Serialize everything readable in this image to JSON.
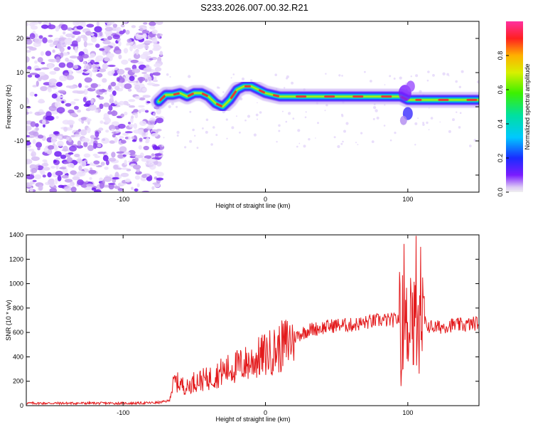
{
  "title": "S233.2026.007.00.32.R21",
  "colors": {
    "spectrum_ridge": "#e53935",
    "snr_line": "#e31a1c",
    "axis": "#000000"
  },
  "chart_data": [
    {
      "type": "heatmap",
      "title": "S233.2026.007.00.32.R21",
      "xlabel": "Height of straight line (km)",
      "ylabel": "Frequency (Hz)",
      "xlim": [
        -168,
        150
      ],
      "ylim": [
        -25,
        25
      ],
      "xticks": [
        {
          "value": -100,
          "label": "-100"
        },
        {
          "value": 0,
          "label": "0"
        },
        {
          "value": 100,
          "label": "100"
        }
      ],
      "yticks": [
        {
          "value": -20,
          "label": "-20"
        },
        {
          "value": -10,
          "label": "-10"
        },
        {
          "value": 0,
          "label": "0"
        },
        {
          "value": 10,
          "label": "10"
        },
        {
          "value": 20,
          "label": "20"
        }
      ],
      "colorbar": {
        "label": "Normalized spectral amplitude",
        "range": [
          0,
          1
        ],
        "ticks": [
          {
            "value": 0.0,
            "label": "0.0"
          },
          {
            "value": 0.2,
            "label": "0.2"
          },
          {
            "value": 0.4,
            "label": "0.4"
          },
          {
            "value": 0.6,
            "label": "0.6"
          },
          {
            "value": 0.8,
            "label": "0.8"
          }
        ],
        "colormap": "rainbow (purple to red to magenta)"
      },
      "noise_region_x": [
        -168,
        -73
      ],
      "ridge": {
        "x": [
          -75,
          -70,
          -65,
          -60,
          -55,
          -50,
          -45,
          -40,
          -35,
          -30,
          -25,
          -20,
          -15,
          -10,
          -5,
          0,
          5,
          10,
          20,
          30,
          40,
          50,
          60,
          70,
          80,
          90,
          95,
          100,
          105,
          110,
          120,
          130,
          140,
          150
        ],
        "frequency": [
          1.5,
          3.5,
          3.5,
          4,
          3,
          4,
          4,
          3,
          1,
          0,
          2,
          5,
          6,
          6,
          5,
          4,
          3.5,
          3,
          3,
          3,
          3,
          3,
          3,
          3,
          3,
          3,
          3,
          2,
          2,
          2,
          2,
          2,
          2,
          2
        ]
      },
      "grid": false
    },
    {
      "type": "line",
      "xlabel": "Height of straight line (km)",
      "ylabel": "SNR (10 * v/v)",
      "xlim": [
        -168,
        150
      ],
      "ylim": [
        0,
        1400
      ],
      "xticks": [
        {
          "value": -100,
          "label": "-100"
        },
        {
          "value": 0,
          "label": "0"
        },
        {
          "value": 100,
          "label": "100"
        }
      ],
      "yticks": [
        {
          "value": 0,
          "label": "0"
        },
        {
          "value": 200,
          "label": "200"
        },
        {
          "value": 400,
          "label": "400"
        },
        {
          "value": 600,
          "label": "600"
        },
        {
          "value": 800,
          "label": "800"
        },
        {
          "value": 1000,
          "label": "1000"
        },
        {
          "value": 1200,
          "label": "1200"
        },
        {
          "value": 1400,
          "label": "1400"
        }
      ],
      "series": [
        {
          "color": "#e31a1c",
          "x": [
            -168,
            -140,
            -110,
            -90,
            -75,
            -68,
            -64,
            -60,
            -55,
            -50,
            -40,
            -30,
            -20,
            -10,
            0,
            10,
            20,
            30,
            40,
            50,
            60,
            70,
            80,
            90,
            95,
            98,
            100,
            102,
            104,
            106,
            108,
            110,
            112,
            115,
            120,
            130,
            140,
            150
          ],
          "y": [
            20,
            20,
            20,
            20,
            25,
            40,
            200,
            180,
            150,
            200,
            220,
            280,
            320,
            360,
            420,
            470,
            560,
            620,
            640,
            660,
            660,
            680,
            700,
            700,
            720,
            600,
            650,
            900,
            600,
            700,
            500,
            700,
            680,
            650,
            640,
            660,
            660,
            680
          ]
        }
      ],
      "grid": false
    }
  ]
}
